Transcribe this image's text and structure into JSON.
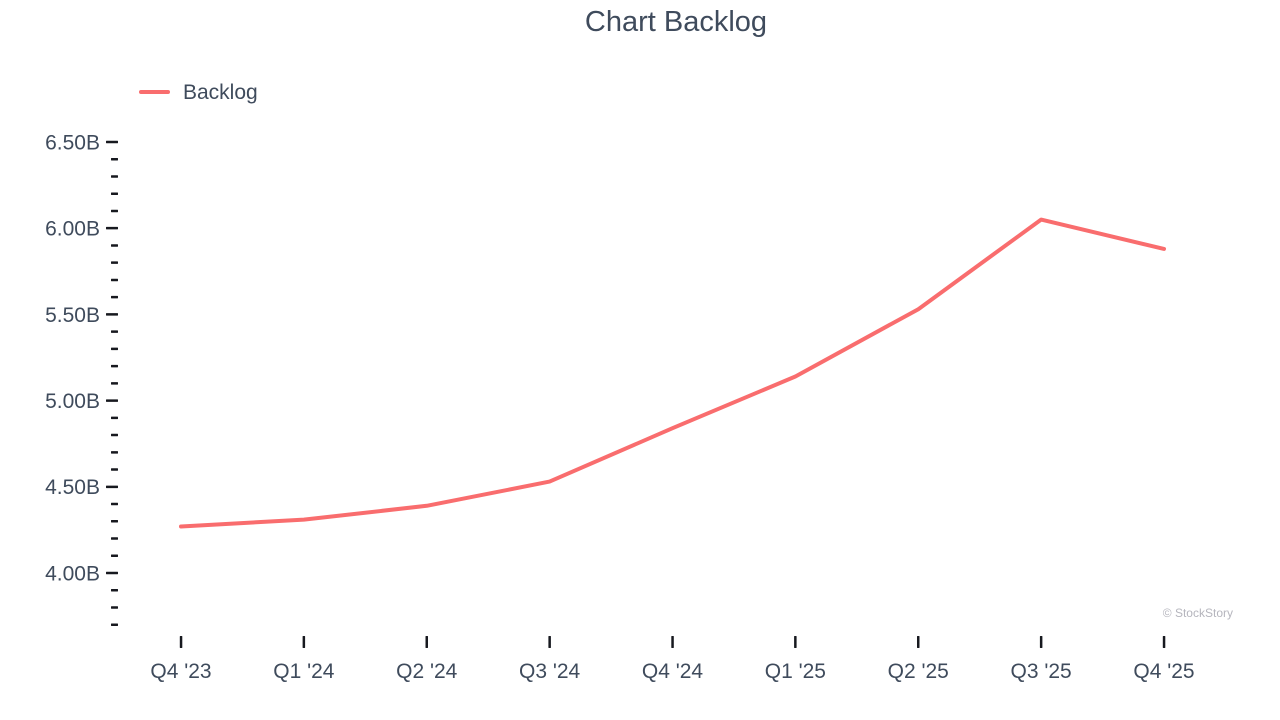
{
  "title": "Chart Backlog",
  "watermark": "© StockStory",
  "legend": {
    "label": "Backlog"
  },
  "colors": {
    "series": "#F96D6E",
    "text": "#3F4B5C",
    "tick": "#17191F",
    "watermark": "#B5B5BD"
  },
  "chart_data": {
    "type": "line",
    "title": "Chart Backlog",
    "categories": [
      "Q4 '23",
      "Q1 '24",
      "Q2 '24",
      "Q3 '24",
      "Q4 '24",
      "Q1 '25",
      "Q2 '25",
      "Q3 '25",
      "Q4 '25"
    ],
    "series": [
      {
        "name": "Backlog",
        "color": "#F96D6E",
        "values": [
          4.27,
          4.31,
          4.39,
          4.53,
          4.84,
          5.14,
          5.53,
          6.05,
          5.88
        ]
      }
    ],
    "unit": "B",
    "y_axis": {
      "tick_min": 3.7,
      "tick_max": 6.5,
      "minor_step": 0.1,
      "major_step": 0.5,
      "labeled_ticks": [
        "4.00B",
        "4.50B",
        "5.00B",
        "5.50B",
        "6.00B",
        "6.50B"
      ]
    },
    "x_axis": {
      "tick_per_category": true
    },
    "grid": false,
    "legend_position": "top-left"
  }
}
